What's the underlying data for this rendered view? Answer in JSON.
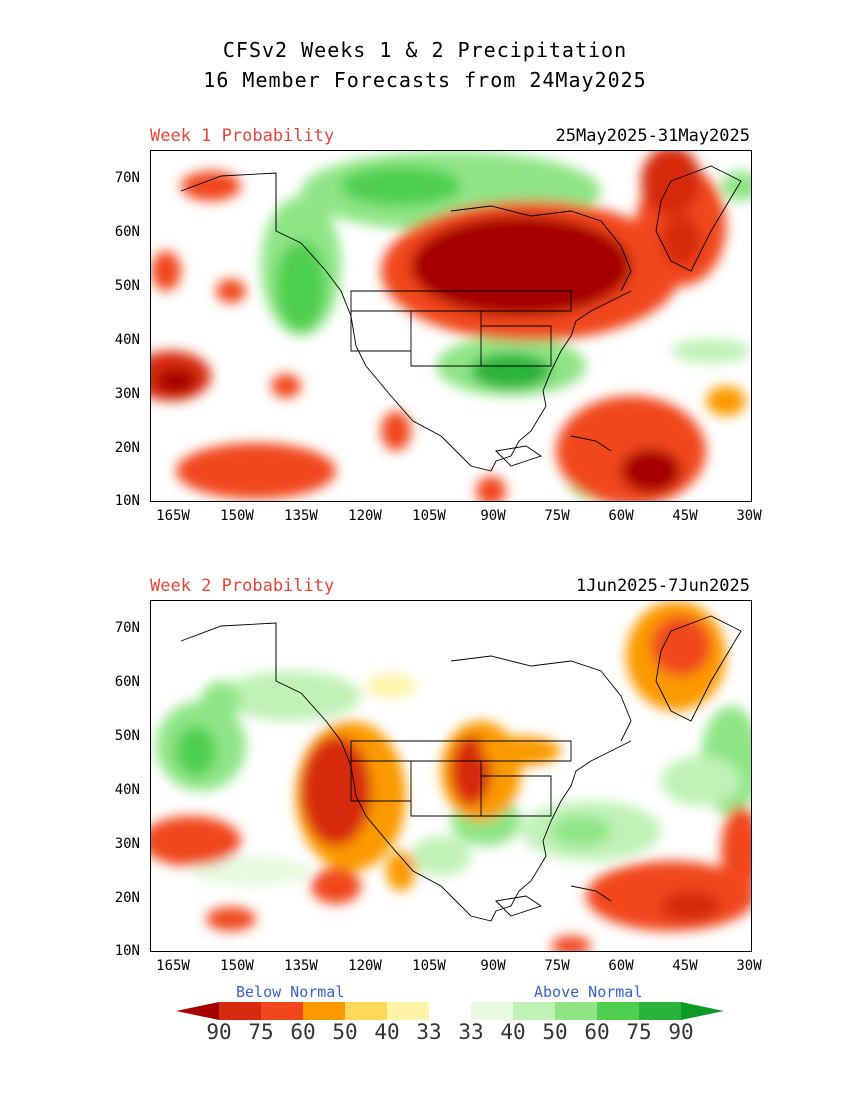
{
  "title": {
    "line1": "CFSv2 Weeks 1 & 2 Precipitation",
    "line2": "16 Member Forecasts from 24May2025"
  },
  "panels": [
    {
      "label": "Week 1 Probability",
      "dates": "25May2025-31May2025"
    },
    {
      "label": "Week 2 Probability",
      "dates": "1Jun2025-7Jun2025"
    }
  ],
  "lat_labels": [
    "70N",
    "60N",
    "50N",
    "40N",
    "30N",
    "20N",
    "10N"
  ],
  "lon_labels": [
    "165W",
    "150W",
    "135W",
    "120W",
    "105W",
    "90W",
    "75W",
    "60W",
    "45W",
    "30W"
  ],
  "legend": {
    "below": "Below Normal",
    "above": "Above Normal",
    "values": [
      "90",
      "75",
      "60",
      "50",
      "40",
      "33",
      "33",
      "40",
      "50",
      "60",
      "75",
      "90"
    ],
    "colors": [
      "#a50000",
      "#d62a0e",
      "#f0461e",
      "#fb9a00",
      "#fdd85a",
      "#fff3a8",
      "#ffffff",
      "#e6fbe0",
      "#c0f2b6",
      "#8fe585",
      "#50cf50",
      "#2ab33a",
      "#0f9a26"
    ]
  }
}
